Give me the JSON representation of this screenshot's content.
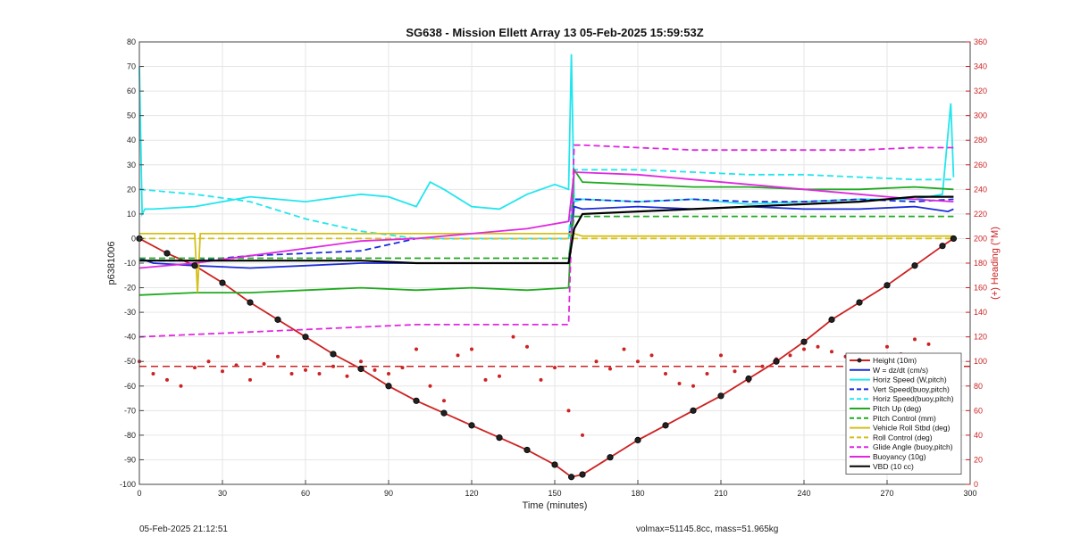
{
  "chart_data": {
    "type": "line",
    "title": "SG638 - Mission Ellett Array 13 05-Feb-2025 15:59:53Z",
    "xlabel": "Time (minutes)",
    "ylabel": "p6381006",
    "ylabel_right": "(+) Heading (°M)",
    "xlim": [
      0,
      300
    ],
    "ylim": [
      -100,
      80
    ],
    "ylim_right": [
      0,
      360
    ],
    "xticks": [
      "0",
      "30",
      "60",
      "90",
      "120",
      "150",
      "180",
      "210",
      "240",
      "270",
      "300"
    ],
    "yticks": [
      "80",
      "70",
      "60",
      "50",
      "40",
      "30",
      "20",
      "10",
      "0",
      "-10",
      "-20",
      "-30",
      "-40",
      "-50",
      "-60",
      "-70",
      "-80",
      "-90",
      "-100"
    ],
    "yticks_right": [
      "360",
      "340",
      "320",
      "300",
      "280",
      "260",
      "240",
      "220",
      "200",
      "180",
      "160",
      "140",
      "120",
      "100",
      "80",
      "60",
      "40",
      "20",
      "0"
    ],
    "legend_position": "bottom-right",
    "grid": true,
    "series": [
      {
        "name": "Height (10m)",
        "color": "#cc2222",
        "style": "solid-markers",
        "x": [
          0,
          10,
          20,
          30,
          40,
          50,
          60,
          70,
          80,
          90,
          100,
          110,
          120,
          130,
          140,
          150,
          156,
          160,
          170,
          180,
          190,
          200,
          210,
          220,
          230,
          240,
          250,
          260,
          270,
          280,
          290,
          294
        ],
        "y": [
          0,
          -6,
          -11,
          -18,
          -26,
          -33,
          -40,
          -47,
          -53,
          -60,
          -66,
          -71,
          -76,
          -81,
          -86,
          -92,
          -97,
          -96,
          -89,
          -82,
          -76,
          -70,
          -64,
          -57,
          -50,
          -42,
          -33,
          -26,
          -19,
          -11,
          -3,
          0
        ]
      },
      {
        "name": "W = dz/dt (cm/s)",
        "color": "#1a2bd6",
        "style": "solid",
        "x": [
          0,
          5,
          20,
          40,
          60,
          80,
          100,
          120,
          140,
          155,
          157,
          160,
          180,
          200,
          220,
          240,
          260,
          280,
          292,
          294
        ],
        "y": [
          -8,
          -10,
          -11,
          -12,
          -11,
          -10,
          -10,
          -10,
          -10,
          -10,
          13,
          12,
          13,
          12,
          13,
          12,
          12,
          13,
          11,
          12
        ]
      },
      {
        "name": "Horiz Speed (W,pitch)",
        "color": "#22e6ee",
        "style": "solid",
        "x": [
          0,
          1,
          2,
          5,
          20,
          40,
          60,
          80,
          90,
          100,
          105,
          110,
          120,
          130,
          140,
          150,
          155,
          156,
          157,
          160,
          180,
          200,
          220,
          240,
          260,
          280,
          290,
          293,
          294
        ],
        "y": [
          70,
          10,
          12,
          12,
          13,
          17,
          15,
          18,
          17,
          13,
          23,
          20,
          13,
          12,
          18,
          22,
          20,
          75,
          15,
          16,
          15,
          16,
          14,
          15,
          16,
          16,
          18,
          55,
          25
        ]
      },
      {
        "name": "Vert Speed(buoy,pitch)",
        "color": "#1a2bd6",
        "style": "dashed",
        "x": [
          0,
          20,
          40,
          60,
          80,
          100,
          120,
          140,
          155,
          157,
          160,
          180,
          200,
          220,
          240,
          260,
          280,
          294
        ],
        "y": [
          -9,
          -9,
          -7,
          -6,
          -5,
          0,
          0,
          0,
          0,
          16,
          16,
          15,
          16,
          15,
          15,
          16,
          15,
          16
        ]
      },
      {
        "name": "Horiz Speed(buoy,pitch)",
        "color": "#22e6ee",
        "style": "dashed",
        "x": [
          0,
          20,
          40,
          60,
          80,
          100,
          120,
          140,
          155,
          157,
          180,
          200,
          220,
          240,
          260,
          280,
          294
        ],
        "y": [
          20,
          18,
          15,
          8,
          3,
          0,
          0,
          0,
          0,
          28,
          28,
          27,
          26,
          26,
          25,
          24,
          24
        ]
      },
      {
        "name": "Pitch Up (deg)",
        "color": "#1faa1f",
        "style": "solid",
        "x": [
          0,
          20,
          40,
          60,
          80,
          100,
          120,
          140,
          155,
          157,
          160,
          180,
          200,
          220,
          240,
          260,
          280,
          294
        ],
        "y": [
          -23,
          -22,
          -22,
          -21,
          -20,
          -21,
          -20,
          -21,
          -20,
          28,
          23,
          22,
          21,
          21,
          20,
          20,
          21,
          20
        ]
      },
      {
        "name": "Pitch Control (mm)",
        "color": "#1faa1f",
        "style": "dashed",
        "x": [
          0,
          155,
          157,
          294
        ],
        "y": [
          -8,
          -8,
          9,
          9
        ]
      },
      {
        "name": "Vehicle Roll Stbd (deg)",
        "color": "#d4c01a",
        "style": "solid",
        "x": [
          0,
          20,
          21,
          22,
          40,
          60,
          90,
          120,
          150,
          155,
          157,
          160,
          180,
          200,
          220,
          240,
          260,
          280,
          294
        ],
        "y": [
          2,
          2,
          -22,
          2,
          2,
          2,
          2,
          2,
          2,
          2,
          2,
          1,
          1,
          1,
          1,
          1,
          1,
          1,
          1
        ]
      },
      {
        "name": "Roll Control (deg)",
        "color": "#d4c01a",
        "style": "dashed",
        "x": [
          0,
          30,
          60,
          90,
          120,
          150,
          155,
          157,
          180,
          210,
          240,
          270,
          294
        ],
        "y": [
          0,
          0,
          0,
          0,
          0,
          0,
          0,
          0,
          0,
          0,
          0,
          0,
          0
        ]
      },
      {
        "name": "Glide Angle (buoy,pitch)",
        "color": "#e028e0",
        "style": "dashed",
        "x": [
          0,
          20,
          40,
          60,
          80,
          100,
          120,
          140,
          155,
          157,
          160,
          180,
          200,
          220,
          240,
          260,
          280,
          294
        ],
        "y": [
          -40,
          -39,
          -38,
          -37,
          -36,
          -35,
          -35,
          -35,
          -35,
          38,
          38,
          37,
          36,
          36,
          36,
          36,
          37,
          37
        ]
      },
      {
        "name": "Buoyancy (10g)",
        "color": "#e028e0",
        "style": "solid",
        "x": [
          0,
          20,
          40,
          60,
          80,
          100,
          120,
          140,
          155,
          157,
          180,
          200,
          220,
          240,
          260,
          280,
          294
        ],
        "y": [
          -12,
          -10,
          -7,
          -4,
          -1,
          0,
          2,
          4,
          7,
          27,
          26,
          24,
          22,
          20,
          18,
          16,
          15
        ]
      },
      {
        "name": "VBD (10 cc)",
        "color": "#000000",
        "style": "solid",
        "x": [
          0,
          20,
          40,
          60,
          80,
          100,
          120,
          140,
          155,
          157,
          160,
          180,
          200,
          220,
          240,
          260,
          280,
          294
        ],
        "y": [
          -9,
          -9,
          -9,
          -9,
          -9,
          -10,
          -10,
          -10,
          -10,
          4,
          10,
          11,
          12,
          13,
          14,
          15,
          17,
          17
        ]
      }
    ],
    "heading_series": {
      "name": "Heading",
      "color": "#cc2222",
      "style": "dots",
      "mean": 96,
      "x": [
        0,
        5,
        10,
        15,
        20,
        25,
        30,
        35,
        40,
        45,
        50,
        55,
        60,
        65,
        70,
        75,
        80,
        85,
        90,
        95,
        100,
        105,
        110,
        115,
        120,
        125,
        130,
        135,
        140,
        145,
        150,
        155,
        160,
        165,
        170,
        175,
        180,
        185,
        190,
        195,
        200,
        205,
        210,
        215,
        220,
        225,
        230,
        235,
        240,
        245,
        250,
        255,
        260,
        265,
        270,
        275,
        280,
        285,
        290,
        294
      ],
      "y": [
        100,
        90,
        85,
        80,
        95,
        100,
        92,
        97,
        85,
        98,
        104,
        90,
        93,
        90,
        96,
        88,
        100,
        93,
        90,
        95,
        110,
        80,
        68,
        105,
        110,
        85,
        88,
        120,
        112,
        85,
        95,
        60,
        40,
        100,
        94,
        110,
        100,
        105,
        90,
        82,
        80,
        90,
        105,
        92,
        84,
        96,
        102,
        105,
        110,
        112,
        108,
        104,
        100,
        96,
        112,
        106,
        118,
        114,
        100,
        96
      ]
    }
  },
  "footer": {
    "left": "05-Feb-2025 21:12:51",
    "right": "volmax=51145.8cc, mass=51.965kg"
  }
}
